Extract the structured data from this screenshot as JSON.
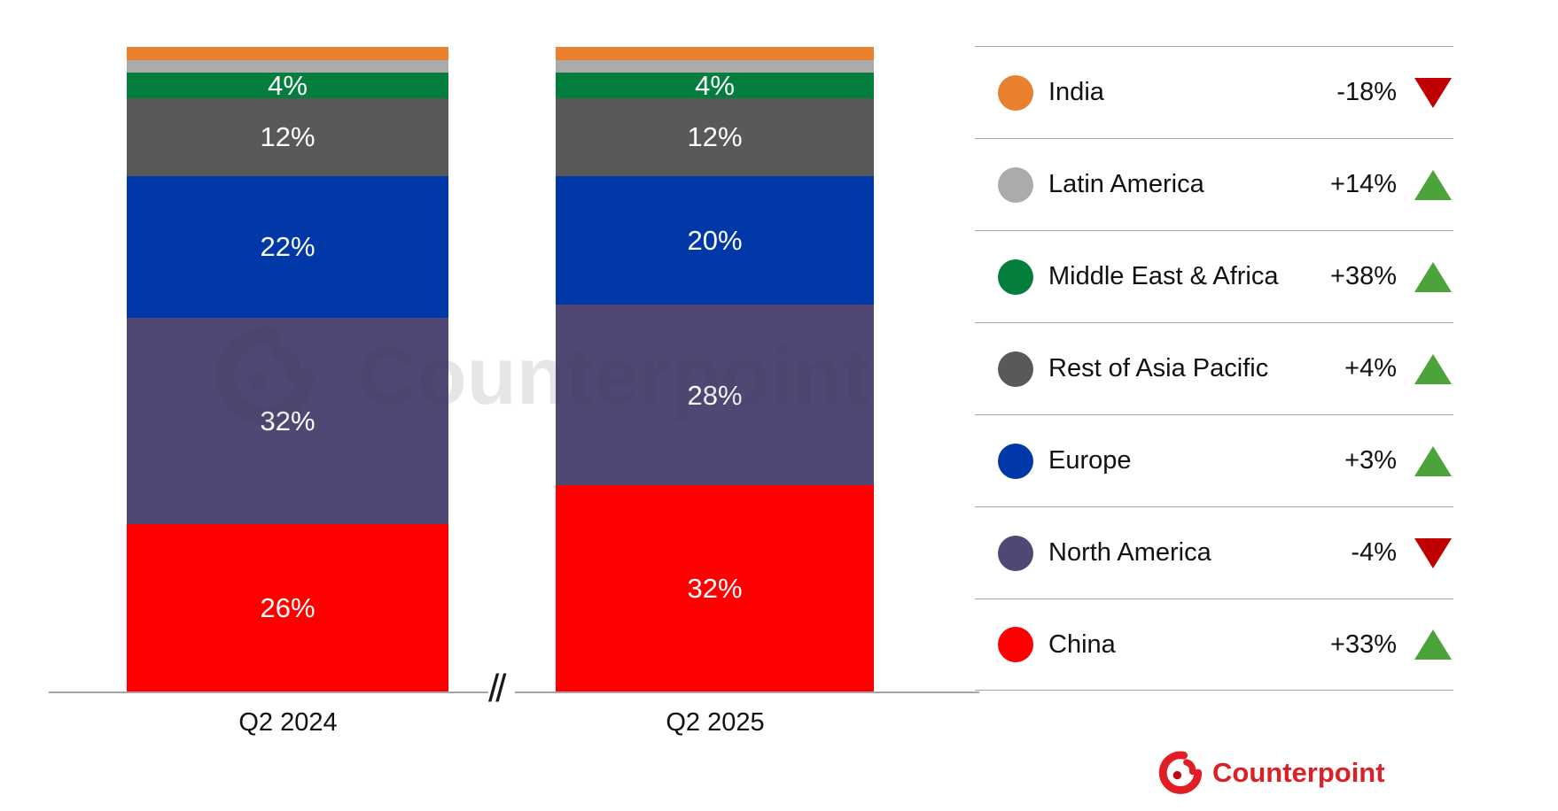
{
  "chart_data": {
    "type": "bar",
    "stacked": true,
    "value_unit": "%",
    "categories": [
      "Q2 2024",
      "Q2 2025"
    ],
    "series": [
      {
        "name": "India",
        "color": "#e8802e",
        "values": [
          2,
          2
        ],
        "labeled": false,
        "yoy_change": "-18%",
        "direction": "down"
      },
      {
        "name": "Latin America",
        "color": "#ababab",
        "values": [
          2,
          2
        ],
        "labeled": false,
        "yoy_change": "+14%",
        "direction": "up"
      },
      {
        "name": "Middle East & Africa",
        "color": "#047e3c",
        "values": [
          4,
          4
        ],
        "labeled": true,
        "yoy_change": "+38%",
        "direction": "up"
      },
      {
        "name": "Rest of Asia Pacific",
        "color": "#595959",
        "values": [
          12,
          12
        ],
        "labeled": true,
        "yoy_change": "+4%",
        "direction": "up"
      },
      {
        "name": "Europe",
        "color": "#0038a8",
        "values": [
          22,
          20
        ],
        "labeled": true,
        "yoy_change": "+3%",
        "direction": "up"
      },
      {
        "name": "North America",
        "color": "#504775",
        "values": [
          32,
          28
        ],
        "labeled": true,
        "yoy_change": "-4%",
        "direction": "down"
      },
      {
        "name": "China",
        "color": "#ff0000",
        "values": [
          26,
          32
        ],
        "labeled": true,
        "yoy_change": "+33%",
        "direction": "up"
      }
    ],
    "ylim": [
      0,
      100
    ],
    "grid": false,
    "legend_position": "right",
    "trend_up_color": "#4ca33a",
    "trend_down_color": "#c00000"
  },
  "axis": {
    "break_symbol": "//",
    "labels": [
      "Q2 2024",
      "Q2 2025"
    ]
  },
  "watermark": {
    "text": "Counterpoint"
  },
  "footer": {
    "brand": "Counterpoint",
    "accent": "#da2128"
  }
}
